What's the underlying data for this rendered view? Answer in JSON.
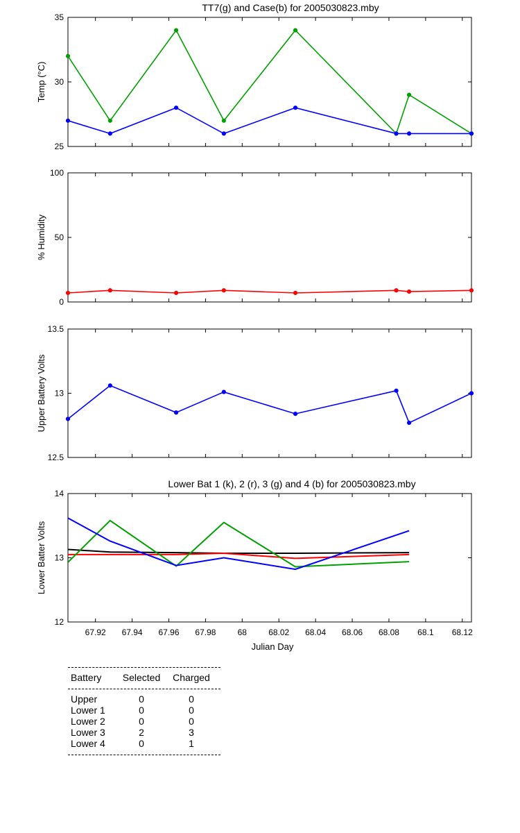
{
  "chart_data": [
    {
      "type": "line",
      "title": "TT7(g) and Case(b) for 2005030823.mby",
      "xlabel": "",
      "ylabel": "Temp  (°C)",
      "ylim": [
        25,
        35
      ],
      "yticks": [
        "25",
        "30",
        "35"
      ],
      "xlim": [
        67.905,
        68.125
      ],
      "show_x_tick_labels": false,
      "series": [
        {
          "color": "#00a000",
          "x": [
            67.905,
            67.928,
            67.964,
            67.99,
            68.029,
            68.084,
            68.091,
            68.125
          ],
          "values": [
            32,
            27,
            34,
            27,
            34,
            26,
            29,
            26
          ]
        },
        {
          "color": "#0000ff",
          "x": [
            67.905,
            67.928,
            67.964,
            67.99,
            68.029,
            68.084,
            68.091,
            68.125
          ],
          "values": [
            27,
            26,
            28,
            26,
            28,
            26,
            26,
            26
          ]
        }
      ]
    },
    {
      "type": "line",
      "title": "",
      "xlabel": "",
      "ylabel": "% Humidity",
      "ylim": [
        0,
        100
      ],
      "yticks": [
        "0",
        "50",
        "100"
      ],
      "xlim": [
        67.905,
        68.125
      ],
      "show_x_tick_labels": false,
      "series": [
        {
          "color": "#ff0000",
          "x": [
            67.905,
            67.928,
            67.964,
            67.99,
            68.029,
            68.084,
            68.091,
            68.125
          ],
          "values": [
            7,
            9,
            7,
            9,
            7,
            9,
            8,
            9
          ]
        }
      ]
    },
    {
      "type": "line",
      "title": "",
      "xlabel": "",
      "ylabel": "Upper Battery Volts",
      "ylim": [
        12.5,
        13.5
      ],
      "yticks": [
        "12.5",
        "13",
        "13.5"
      ],
      "xlim": [
        67.905,
        68.125
      ],
      "show_x_tick_labels": false,
      "series": [
        {
          "color": "#0000ff",
          "x": [
            67.905,
            67.928,
            67.964,
            67.99,
            68.029,
            68.084,
            68.091,
            68.125
          ],
          "values": [
            12.8,
            13.06,
            12.85,
            13.01,
            12.84,
            13.02,
            12.77,
            13.0
          ]
        }
      ]
    },
    {
      "type": "line",
      "title": "Lower Bat 1 (k), 2 (r), 3 (g) and 4 (b) for 2005030823.mby",
      "xlabel": "Julian Day",
      "ylabel": "Lower Batter Volts",
      "ylim": [
        12,
        14
      ],
      "yticks": [
        "12",
        "13",
        "14"
      ],
      "xlim": [
        67.905,
        68.125
      ],
      "xticks": [
        67.92,
        67.94,
        67.96,
        67.98,
        68.0,
        68.02,
        68.04,
        68.06,
        68.08,
        68.1,
        68.12
      ],
      "xtick_labels": [
        "67.92",
        "67.94",
        "67.96",
        "67.98",
        "68",
        "68.02",
        "68.04",
        "68.06",
        "68.08",
        "68.1",
        "68.12"
      ],
      "show_x_tick_labels": true,
      "series": [
        {
          "color": "#000000",
          "x": [
            67.905,
            67.928,
            67.964,
            67.99,
            68.029,
            68.091
          ],
          "values": [
            13.13,
            13.09,
            13.08,
            13.07,
            13.07,
            13.08
          ]
        },
        {
          "color": "#ff0000",
          "x": [
            67.905,
            67.928,
            67.964,
            67.99,
            68.029,
            68.091
          ],
          "values": [
            13.05,
            13.05,
            13.05,
            13.07,
            12.99,
            13.05
          ]
        },
        {
          "color": "#00a000",
          "x": [
            67.905,
            67.928,
            67.964,
            67.99,
            68.029,
            68.091
          ],
          "values": [
            12.93,
            13.58,
            12.87,
            13.55,
            12.86,
            12.94
          ]
        },
        {
          "color": "#0000ff",
          "x": [
            67.905,
            67.928,
            67.964,
            67.99,
            68.029,
            68.091
          ],
          "values": [
            13.62,
            13.26,
            12.88,
            13.0,
            12.82,
            13.42
          ]
        }
      ]
    }
  ],
  "battery_table": {
    "headers": [
      "Battery",
      "Selected",
      "Charged"
    ],
    "rows": [
      [
        "Upper",
        "0",
        "0"
      ],
      [
        "Lower 1",
        "0",
        "0"
      ],
      [
        "Lower 2",
        "0",
        "0"
      ],
      [
        "Lower 3",
        "2",
        "3"
      ],
      [
        "Lower 4",
        "0",
        "1"
      ]
    ]
  }
}
